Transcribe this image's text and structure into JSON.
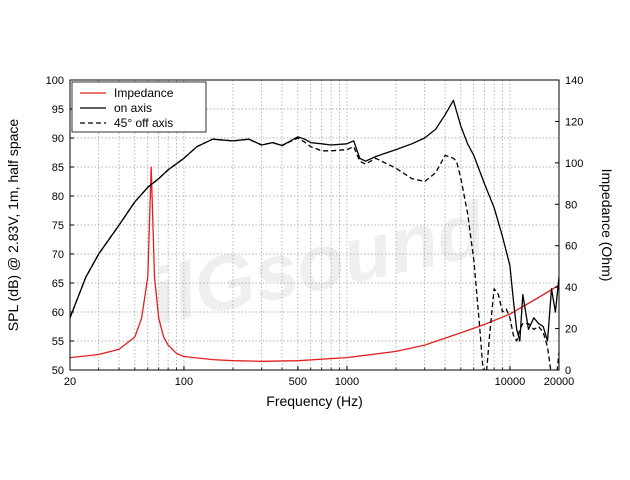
{
  "chart_data": {
    "type": "line",
    "xlabel": "Frequency (Hz)",
    "ylabel_left": "SPL (dB) @ 2.83V, 1m, half space",
    "ylabel_right": "Impedance (Ohm)",
    "x_scale": "log",
    "xlim": [
      20,
      20000
    ],
    "ylim_left": [
      50,
      100
    ],
    "ylim_right": [
      0,
      140
    ],
    "x_ticks": [
      20,
      100,
      500,
      1000,
      10000,
      20000
    ],
    "y_ticks_left": [
      50,
      55,
      60,
      65,
      70,
      75,
      80,
      85,
      90,
      95,
      100
    ],
    "y_ticks_right": [
      0,
      20,
      40,
      60,
      80,
      100,
      120,
      140
    ],
    "grid": true,
    "legend_position": "top-left",
    "watermark": "ilGsound",
    "series": [
      {
        "name": "Impedance",
        "axis": "right",
        "color": "#e02020",
        "style": "solid",
        "x": [
          20,
          30,
          40,
          50,
          55,
          60,
          63,
          66,
          70,
          75,
          80,
          90,
          100,
          150,
          200,
          300,
          500,
          1000,
          2000,
          3000,
          5000,
          7000,
          10000,
          15000,
          20000
        ],
        "y": [
          6,
          7.5,
          10,
          16,
          25,
          45,
          98,
          45,
          25,
          16,
          12,
          8,
          6.5,
          5,
          4.5,
          4.2,
          4.5,
          6,
          9,
          12,
          18,
          22,
          27,
          35,
          41
        ]
      },
      {
        "name": "on axis",
        "axis": "left",
        "color": "#000000",
        "style": "solid",
        "x": [
          20,
          25,
          30,
          40,
          50,
          60,
          70,
          80,
          100,
          120,
          150,
          200,
          250,
          300,
          350,
          400,
          450,
          500,
          550,
          600,
          700,
          800,
          1000,
          1100,
          1200,
          1300,
          1500,
          2000,
          2500,
          3000,
          3500,
          4000,
          4500,
          5000,
          5500,
          6000,
          7000,
          8000,
          9000,
          10000,
          10500,
          11000,
          11500,
          12000,
          13000,
          14000,
          15000,
          16000,
          17000,
          18000,
          19000,
          20000
        ],
        "y": [
          59,
          66,
          70,
          75,
          79,
          81.5,
          83,
          84.5,
          86.5,
          88.5,
          89.8,
          89.5,
          89.8,
          88.8,
          89.2,
          88.7,
          89.5,
          90.2,
          89.8,
          89.2,
          89,
          88.8,
          89,
          89.5,
          86.5,
          86,
          86.8,
          88,
          89,
          90,
          91.5,
          94,
          96.5,
          92,
          89,
          87,
          82,
          78,
          73,
          68,
          62,
          57,
          55,
          63,
          57,
          59,
          58,
          57.5,
          55,
          64,
          60,
          66
        ]
      },
      {
        "name": "45° off axis",
        "axis": "left",
        "color": "#000000",
        "style": "dashed",
        "x": [
          20,
          25,
          30,
          40,
          50,
          60,
          70,
          80,
          100,
          120,
          150,
          200,
          250,
          300,
          350,
          400,
          450,
          500,
          550,
          600,
          700,
          800,
          1000,
          1100,
          1200,
          1300,
          1500,
          2000,
          2500,
          3000,
          3500,
          4000,
          4500,
          4700,
          5000,
          5500,
          6000,
          6500,
          6800,
          7000,
          7200,
          7500,
          8000,
          8500,
          9000,
          9500,
          10000,
          10500,
          11000,
          11500,
          12000,
          13000,
          14000,
          15000,
          16000,
          17000,
          18000,
          19000,
          20000
        ],
        "y": [
          59,
          66,
          70,
          75,
          79,
          81.5,
          83,
          84.5,
          86.5,
          88.5,
          89.8,
          89.5,
          89.8,
          88.8,
          89.2,
          88.7,
          89.4,
          90,
          89.3,
          88.5,
          87.8,
          87.8,
          88,
          88.5,
          86,
          85.5,
          86.5,
          84.8,
          83,
          82.5,
          84,
          87,
          86.5,
          86,
          83,
          77,
          69,
          58,
          51,
          48,
          50,
          56,
          64,
          63,
          60,
          60.5,
          59,
          56,
          55,
          57,
          58,
          58,
          57,
          57.5,
          56.5,
          54,
          49,
          47,
          53
        ]
      }
    ]
  }
}
